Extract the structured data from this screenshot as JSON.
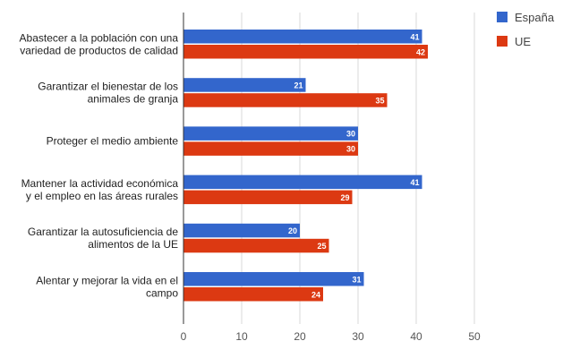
{
  "chart_data": {
    "type": "bar",
    "orientation": "horizontal",
    "categories": [
      [
        "Abastecer a la población con una",
        "variedad de productos de calidad"
      ],
      [
        "Garantizar el bienestar de los",
        "animales de granja"
      ],
      [
        "Proteger el medio ambiente"
      ],
      [
        "Mantener la actividad económica",
        "y el empleo en las áreas rurales"
      ],
      [
        "Garantizar la autosuficiencia de",
        "alimentos de la UE"
      ],
      [
        "Alentar y mejorar la vida en el",
        "campo"
      ]
    ],
    "series": [
      {
        "name": "España",
        "color": "#3366cc",
        "values": [
          41,
          21,
          30,
          41,
          20,
          31
        ]
      },
      {
        "name": "UE",
        "color": "#dc3912",
        "values": [
          42,
          35,
          30,
          29,
          25,
          24
        ]
      }
    ],
    "xlim": [
      0,
      50
    ],
    "xticks": [
      0,
      10,
      20,
      30,
      40,
      50
    ],
    "grid": true,
    "data_labels": true,
    "legend_position": "right",
    "title": "",
    "xlabel": "",
    "ylabel": ""
  }
}
